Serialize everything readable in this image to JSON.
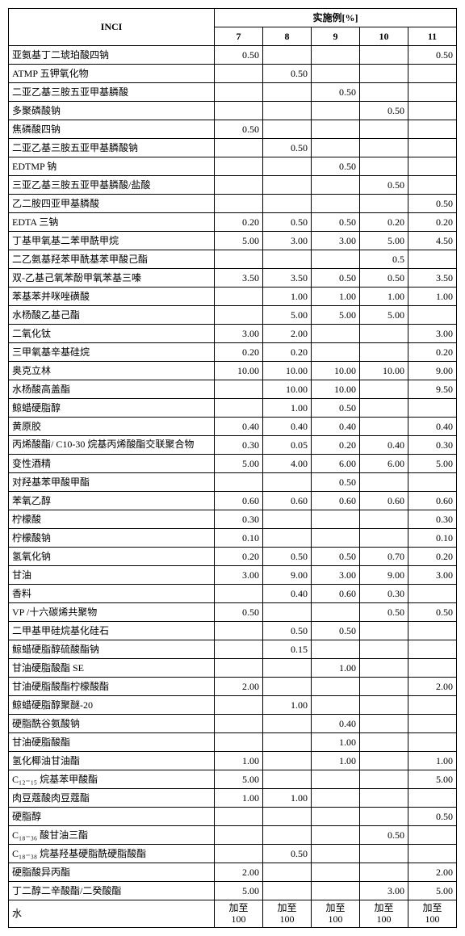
{
  "header": {
    "inci": "INCI",
    "group": "实施例[%]",
    "cols": [
      "7",
      "8",
      "9",
      "10",
      "11"
    ]
  },
  "rows": [
    {
      "label": "亚氨基丁二琥珀酸四钠",
      "v": [
        "0.50",
        "",
        "",
        "",
        "0.50"
      ]
    },
    {
      "label": "ATMP 五钾氧化物",
      "v": [
        "",
        "0.50",
        "",
        "",
        ""
      ]
    },
    {
      "label": "二亚乙基三胺五亚甲基膦酸",
      "v": [
        "",
        "",
        "0.50",
        "",
        ""
      ]
    },
    {
      "label": "多聚磷酸钠",
      "v": [
        "",
        "",
        "",
        "0.50",
        ""
      ]
    },
    {
      "label": "焦磷酸四钠",
      "v": [
        "0.50",
        "",
        "",
        "",
        ""
      ]
    },
    {
      "label": "二亚乙基三胺五亚甲基膦酸钠",
      "v": [
        "",
        "0.50",
        "",
        "",
        ""
      ]
    },
    {
      "label": "EDTMP 钠",
      "v": [
        "",
        "",
        "0.50",
        "",
        ""
      ]
    },
    {
      "label": "三亚乙基三胺五亚甲基膦酸/盐酸",
      "v": [
        "",
        "",
        "",
        "0.50",
        ""
      ]
    },
    {
      "label": "乙二胺四亚甲基膦酸",
      "v": [
        "",
        "",
        "",
        "",
        "0.50"
      ]
    },
    {
      "label": "EDTA 三钠",
      "v": [
        "0.20",
        "0.50",
        "0.50",
        "0.20",
        "0.20"
      ]
    },
    {
      "label": "丁基甲氧基二苯甲酰甲烷",
      "v": [
        "5.00",
        "3.00",
        "3.00",
        "5.00",
        "4.50"
      ]
    },
    {
      "label": "二乙氨基羟苯甲酰基苯甲酸己酯",
      "v": [
        "",
        "",
        "",
        "0.5",
        ""
      ]
    },
    {
      "label": "双-乙基己氧苯酚甲氧苯基三嗪",
      "v": [
        "3.50",
        "3.50",
        "0.50",
        "0.50",
        "3.50"
      ]
    },
    {
      "label": "苯基苯并咪唑磺酸",
      "v": [
        "",
        "1.00",
        "1.00",
        "1.00",
        "1.00"
      ]
    },
    {
      "label": "水杨酸乙基己酯",
      "v": [
        "",
        "5.00",
        "5.00",
        "5.00",
        ""
      ]
    },
    {
      "label": "二氧化钛",
      "v": [
        "3.00",
        "2.00",
        "",
        "",
        "3.00"
      ]
    },
    {
      "label": "三甲氧基辛基硅烷",
      "v": [
        "0.20",
        "0.20",
        "",
        "",
        "0.20"
      ]
    },
    {
      "label": "奥克立林",
      "v": [
        "10.00",
        "10.00",
        "10.00",
        "10.00",
        "9.00"
      ]
    },
    {
      "label": "水杨酸高盖酯",
      "v": [
        "",
        "10.00",
        "10.00",
        "",
        "9.50"
      ]
    },
    {
      "label": "鲸蜡硬脂醇",
      "v": [
        "",
        "1.00",
        "0.50",
        "",
        ""
      ]
    },
    {
      "label": "黄原胶",
      "v": [
        "0.40",
        "0.40",
        "0.40",
        "",
        "0.40"
      ]
    },
    {
      "label": "丙烯酸酯/ C10-30 烷基丙烯酸酯交联聚合物",
      "v": [
        "0.30",
        "0.05",
        "0.20",
        "0.40",
        "0.30"
      ]
    },
    {
      "label": "变性酒精",
      "v": [
        "5.00",
        "4.00",
        "6.00",
        "6.00",
        "5.00"
      ]
    },
    {
      "label": "对羟基苯甲酸甲酯",
      "v": [
        "",
        "",
        "0.50",
        "",
        ""
      ]
    },
    {
      "label": "苯氧乙醇",
      "v": [
        "0.60",
        "0.60",
        "0.60",
        "0.60",
        "0.60"
      ]
    },
    {
      "label": "柠檬酸",
      "v": [
        "0.30",
        "",
        "",
        "",
        "0.30"
      ]
    },
    {
      "label": "柠檬酸钠",
      "v": [
        "0.10",
        "",
        "",
        "",
        "0.10"
      ]
    },
    {
      "label": "氢氧化钠",
      "v": [
        "0.20",
        "0.50",
        "0.50",
        "0.70",
        "0.20"
      ]
    },
    {
      "label": "甘油",
      "v": [
        "3.00",
        "9.00",
        "3.00",
        "9.00",
        "3.00"
      ]
    },
    {
      "label": "香料",
      "v": [
        "",
        "0.40",
        "0.60",
        "0.30",
        ""
      ]
    },
    {
      "label": "VP /十六碳烯共聚物",
      "v": [
        "0.50",
        "",
        "",
        "0.50",
        "0.50"
      ]
    },
    {
      "label": "二甲基甲硅烷基化硅石",
      "v": [
        "",
        "0.50",
        "0.50",
        "",
        ""
      ]
    },
    {
      "label": "鲸蜡硬脂醇硫酸酯钠",
      "v": [
        "",
        "0.15",
        "",
        "",
        ""
      ]
    },
    {
      "label": "甘油硬脂酸酯 SE",
      "v": [
        "",
        "",
        "1.00",
        "",
        ""
      ]
    },
    {
      "label": "甘油硬脂酸酯柠檬酸酯",
      "v": [
        "2.00",
        "",
        "",
        "",
        "2.00"
      ]
    },
    {
      "label": "鲸蜡硬脂醇聚醚-20",
      "v": [
        "",
        "1.00",
        "",
        "",
        ""
      ]
    },
    {
      "label": "硬脂酰谷氨酸钠",
      "v": [
        "",
        "",
        "0.40",
        "",
        ""
      ]
    },
    {
      "label": "甘油硬脂酸酯",
      "v": [
        "",
        "",
        "1.00",
        "",
        ""
      ]
    },
    {
      "label": "氢化椰油甘油酯",
      "v": [
        "1.00",
        "",
        "1.00",
        "",
        "1.00"
      ]
    },
    {
      "label": "C₁₂₋₁₅ 烷基苯甲酸酯",
      "v": [
        "5.00",
        "",
        "",
        "",
        "5.00"
      ]
    },
    {
      "label": "肉豆蔻酸肉豆蔻酯",
      "v": [
        "1.00",
        "1.00",
        "",
        "",
        ""
      ]
    },
    {
      "label": "硬脂醇",
      "v": [
        "",
        "",
        "",
        "",
        "0.50"
      ]
    },
    {
      "label": "C₁₈₋₃₆ 酸甘油三酯",
      "v": [
        "",
        "",
        "",
        "0.50",
        ""
      ]
    },
    {
      "label": "C₁₈₋₃₈ 烷基羟基硬脂酰硬脂酸酯",
      "v": [
        "",
        "0.50",
        "",
        "",
        ""
      ]
    },
    {
      "label": "硬脂酸异丙酯",
      "v": [
        "2.00",
        "",
        "",
        "",
        "2.00"
      ]
    },
    {
      "label": "丁二醇二辛酸酯/二癸酸酯",
      "v": [
        "5.00",
        "",
        "",
        "3.00",
        "5.00"
      ]
    },
    {
      "label": "水",
      "v": [
        "加至100",
        "加至100",
        "加至100",
        "加至100",
        "加至100"
      ]
    }
  ]
}
